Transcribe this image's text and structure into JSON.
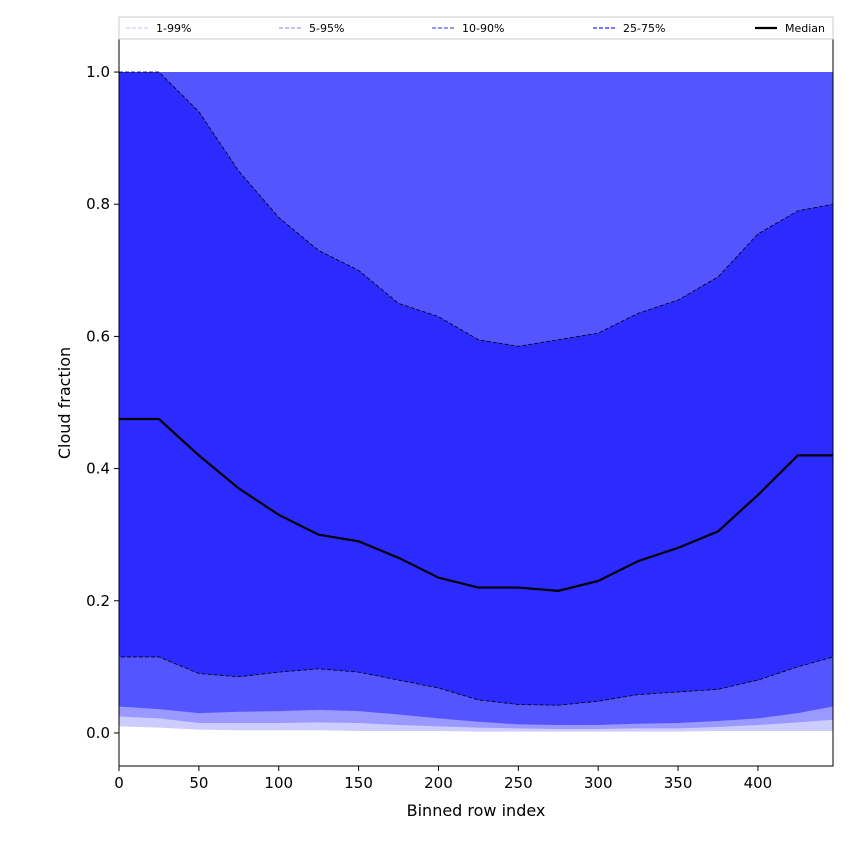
{
  "chart_data": {
    "type": "area",
    "xlabel": "Binned row index",
    "ylabel": "Cloud fraction",
    "xlim": [
      0,
      447
    ],
    "ylim": [
      -0.05,
      1.05
    ],
    "xticks": [
      "0",
      "50",
      "100",
      "150",
      "200",
      "250",
      "300",
      "350",
      "400"
    ],
    "yticks": [
      "0.0",
      "0.2",
      "0.4",
      "0.6",
      "0.8",
      "1.0"
    ],
    "grid": false,
    "legend_placement": "top",
    "colors": {
      "band_1_99": "#ccccff",
      "band_5_95": "#9999ff",
      "band_10_90": "#5555ff",
      "band_25_75": "#2b2bff",
      "median": "#000000"
    },
    "legend": [
      {
        "label": "1-99%",
        "style": "band_1_99"
      },
      {
        "label": "5-95%",
        "style": "band_5_95"
      },
      {
        "label": "10-90%",
        "style": "band_10_90"
      },
      {
        "label": "25-75%",
        "style": "band_25_75"
      },
      {
        "label": "Median",
        "style": "median"
      }
    ],
    "x": [
      0,
      25,
      50,
      75,
      100,
      125,
      150,
      175,
      200,
      225,
      250,
      275,
      300,
      325,
      350,
      375,
      400,
      425,
      447
    ],
    "series": [
      {
        "name": "1-99%",
        "lower": [
          0.01,
          0.008,
          0.005,
          0.004,
          0.004,
          0.004,
          0.003,
          0.003,
          0.003,
          0.002,
          0.002,
          0.002,
          0.002,
          0.002,
          0.002,
          0.003,
          0.003,
          0.003,
          0.003
        ],
        "upper": [
          1,
          1,
          1,
          1,
          1,
          1,
          1,
          1,
          1,
          1,
          1,
          1,
          1,
          1,
          1,
          1,
          1,
          1,
          1
        ]
      },
      {
        "name": "5-95%",
        "lower": [
          0.025,
          0.022,
          0.015,
          0.015,
          0.015,
          0.016,
          0.015,
          0.012,
          0.01,
          0.008,
          0.007,
          0.006,
          0.006,
          0.007,
          0.007,
          0.009,
          0.012,
          0.016,
          0.02
        ],
        "upper": [
          1,
          1,
          1,
          1,
          1,
          1,
          1,
          1,
          1,
          1,
          1,
          1,
          1,
          1,
          1,
          1,
          1,
          1,
          1
        ]
      },
      {
        "name": "10-90%",
        "lower": [
          0.04,
          0.036,
          0.03,
          0.032,
          0.033,
          0.035,
          0.033,
          0.028,
          0.022,
          0.017,
          0.013,
          0.012,
          0.012,
          0.014,
          0.015,
          0.018,
          0.022,
          0.03,
          0.04
        ],
        "upper": [
          1,
          1,
          1,
          1,
          1,
          1,
          1,
          1,
          1,
          1,
          1,
          1,
          1,
          1,
          1,
          1,
          1,
          1,
          1
        ]
      },
      {
        "name": "25-75%",
        "lower": [
          0.115,
          0.115,
          0.09,
          0.085,
          0.092,
          0.097,
          0.092,
          0.08,
          0.068,
          0.05,
          0.043,
          0.042,
          0.048,
          0.058,
          0.062,
          0.066,
          0.08,
          0.1,
          0.115
        ],
        "upper": [
          1.0,
          1.0,
          0.94,
          0.85,
          0.78,
          0.73,
          0.7,
          0.65,
          0.63,
          0.595,
          0.585,
          0.595,
          0.605,
          0.635,
          0.655,
          0.69,
          0.755,
          0.79,
          0.8
        ]
      },
      {
        "name": "Median",
        "values": [
          0.475,
          0.475,
          0.42,
          0.37,
          0.33,
          0.3,
          0.29,
          0.265,
          0.235,
          0.22,
          0.22,
          0.215,
          0.23,
          0.26,
          0.28,
          0.305,
          0.36,
          0.42,
          0.42
        ]
      }
    ]
  }
}
